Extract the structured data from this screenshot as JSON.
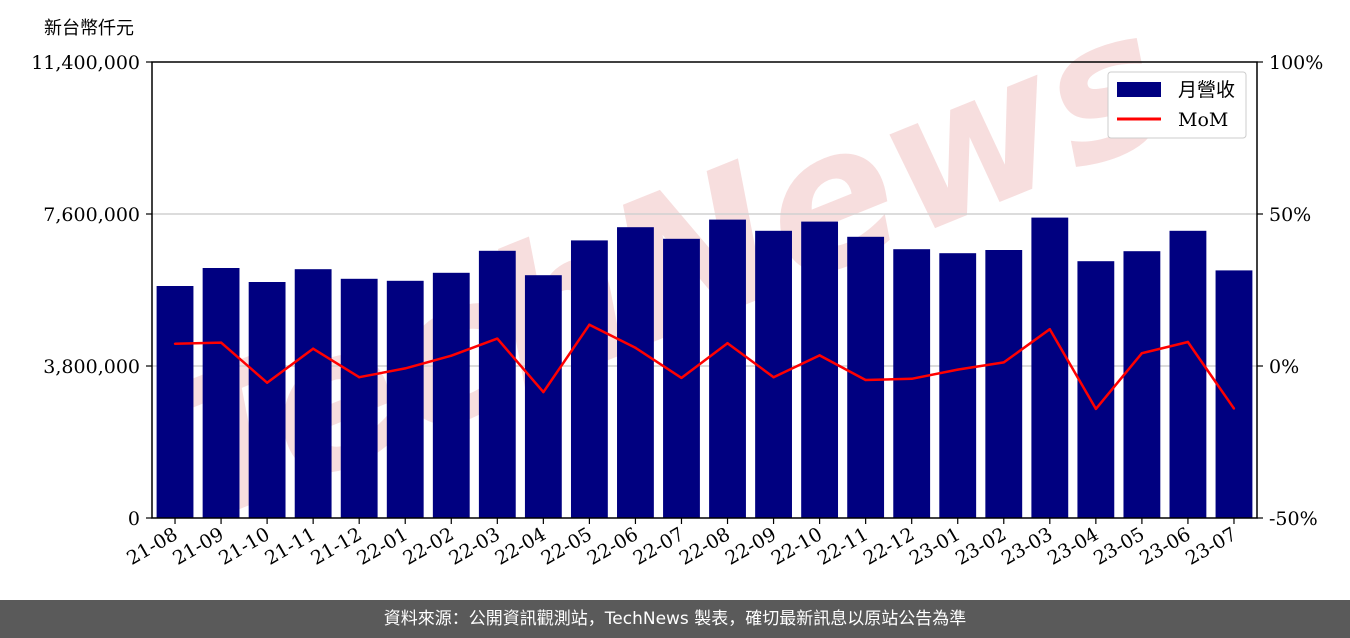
{
  "unit_label": "新台幣仟元",
  "footer_text": "資料來源：公開資訊觀測站，TechNews 製表，確切最新訊息以原站公告為準",
  "watermark": "TechNews",
  "colors": {
    "bar": "#000080",
    "line": "#ff0000",
    "grid": "#d0d0d0",
    "footer_bg": "#5a5a5a",
    "watermark": "#f2c4c4"
  },
  "chart_data": {
    "type": "bar",
    "categories": [
      "21-08",
      "21-09",
      "21-10",
      "21-11",
      "21-12",
      "22-01",
      "22-02",
      "22-03",
      "22-04",
      "22-05",
      "22-06",
      "22-07",
      "22-08",
      "22-09",
      "22-10",
      "22-11",
      "22-12",
      "23-01",
      "23-02",
      "23-03",
      "23-04",
      "23-05",
      "23-06",
      "23-07"
    ],
    "series": [
      {
        "name": "月營收",
        "axis": "left",
        "type": "bar",
        "values": [
          5800000,
          6250000,
          5900000,
          6220000,
          5980000,
          5930000,
          6130000,
          6680000,
          6070000,
          6940000,
          7270000,
          6980000,
          7460000,
          7180000,
          7410000,
          7030000,
          6720000,
          6620000,
          6700000,
          7510000,
          6420000,
          6670000,
          7180000,
          6190000
        ]
      },
      {
        "name": "MoM",
        "axis": "right",
        "type": "line",
        "values": [
          7.3,
          7.7,
          -5.5,
          5.7,
          -3.7,
          -0.8,
          3.4,
          9.0,
          -8.6,
          13.6,
          6.0,
          -3.9,
          7.5,
          -3.7,
          3.5,
          -4.6,
          -4.2,
          -1.2,
          1.2,
          12.1,
          -14.1,
          4.2,
          7.9,
          -14.0
        ]
      }
    ],
    "ylim_left": [
      0,
      11400000
    ],
    "yticks_left": [
      "0",
      "3,800,000",
      "7,600,000",
      "11,400,000"
    ],
    "ylim_right": [
      -50,
      100
    ],
    "yticks_right": [
      "-50%",
      "0%",
      "50%",
      "100%"
    ],
    "grid": "horizontal",
    "legend_position": "top-right",
    "legend": [
      "月營收",
      "MoM"
    ]
  }
}
